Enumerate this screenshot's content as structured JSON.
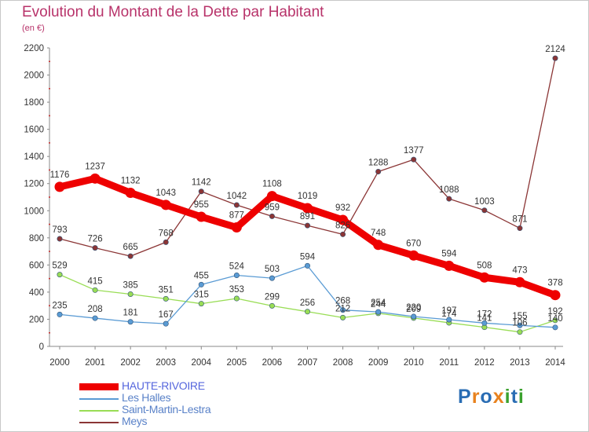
{
  "chart_data": {
    "type": "line",
    "title": "Evolution du Montant de la Dette par Habitant",
    "subtitle": "(en €)",
    "xlabel": "",
    "ylabel": "",
    "ylim": [
      0,
      2200
    ],
    "yticks": [
      0,
      200,
      400,
      600,
      800,
      1000,
      1200,
      1400,
      1600,
      1800,
      2000,
      2200
    ],
    "categories": [
      "2000",
      "2001",
      "2002",
      "2003",
      "2004",
      "2005",
      "2006",
      "2007",
      "2008",
      "2009",
      "2010",
      "2011",
      "2012",
      "2013",
      "2014"
    ],
    "grid": false,
    "legend_position": "bottom-left",
    "series": [
      {
        "name": "HAUTE-RIVOIRE",
        "color": "#ee0000",
        "values": [
          1176,
          1237,
          1132,
          1043,
          955,
          877,
          1108,
          1019,
          932,
          748,
          670,
          594,
          508,
          473,
          378
        ],
        "labels": [
          "1176",
          "1237",
          "1132",
          "1043",
          "955",
          "877",
          "1108",
          "1019",
          "932",
          "748",
          "670",
          "594",
          "508",
          "473",
          "378"
        ]
      },
      {
        "name": "Les Halles",
        "color": "#5a9bd4",
        "values": [
          235,
          208,
          181,
          167,
          455,
          524,
          503,
          594,
          268,
          254,
          220,
          197,
          172,
          155,
          140
        ],
        "labels": [
          "235",
          "208",
          "181",
          "167",
          "455",
          "524",
          "503",
          "594",
          "268",
          "254",
          "220",
          "197",
          "172",
          "155",
          "140"
        ]
      },
      {
        "name": "Saint-Martin-Lestra",
        "color": "#99dd55",
        "values": [
          529,
          415,
          385,
          351,
          315,
          353,
          299,
          256,
          212,
          244,
          209,
          174,
          141,
          106,
          192
        ],
        "labels": [
          "529",
          "415",
          "385",
          "351",
          "315",
          "353",
          "299",
          "256",
          "212",
          "244",
          "209",
          "174",
          "141",
          "106",
          "192"
        ]
      },
      {
        "name": "Meys",
        "color": "#8b3535",
        "values": [
          793,
          726,
          665,
          768,
          1142,
          1042,
          959,
          891,
          826,
          1288,
          1377,
          1088,
          1003,
          871,
          2124
        ],
        "labels": [
          "793",
          "726",
          "665",
          "768",
          "1142",
          "1042",
          "959",
          "891",
          "826",
          "1288",
          "1377",
          "1088",
          "1003",
          "871",
          "2124"
        ]
      }
    ]
  },
  "logo": {
    "text": "Proxiti",
    "letters": [
      {
        "ch": "P",
        "color": "#2a6db4"
      },
      {
        "ch": "r",
        "color": "#e8821e"
      },
      {
        "ch": "o",
        "color": "#2a6db4"
      },
      {
        "ch": "x",
        "color": "#e8821e"
      },
      {
        "ch": "i",
        "color": "#3aa12d"
      },
      {
        "ch": "t",
        "color": "#2a6db4"
      },
      {
        "ch": "i",
        "color": "#3aa12d"
      }
    ]
  }
}
